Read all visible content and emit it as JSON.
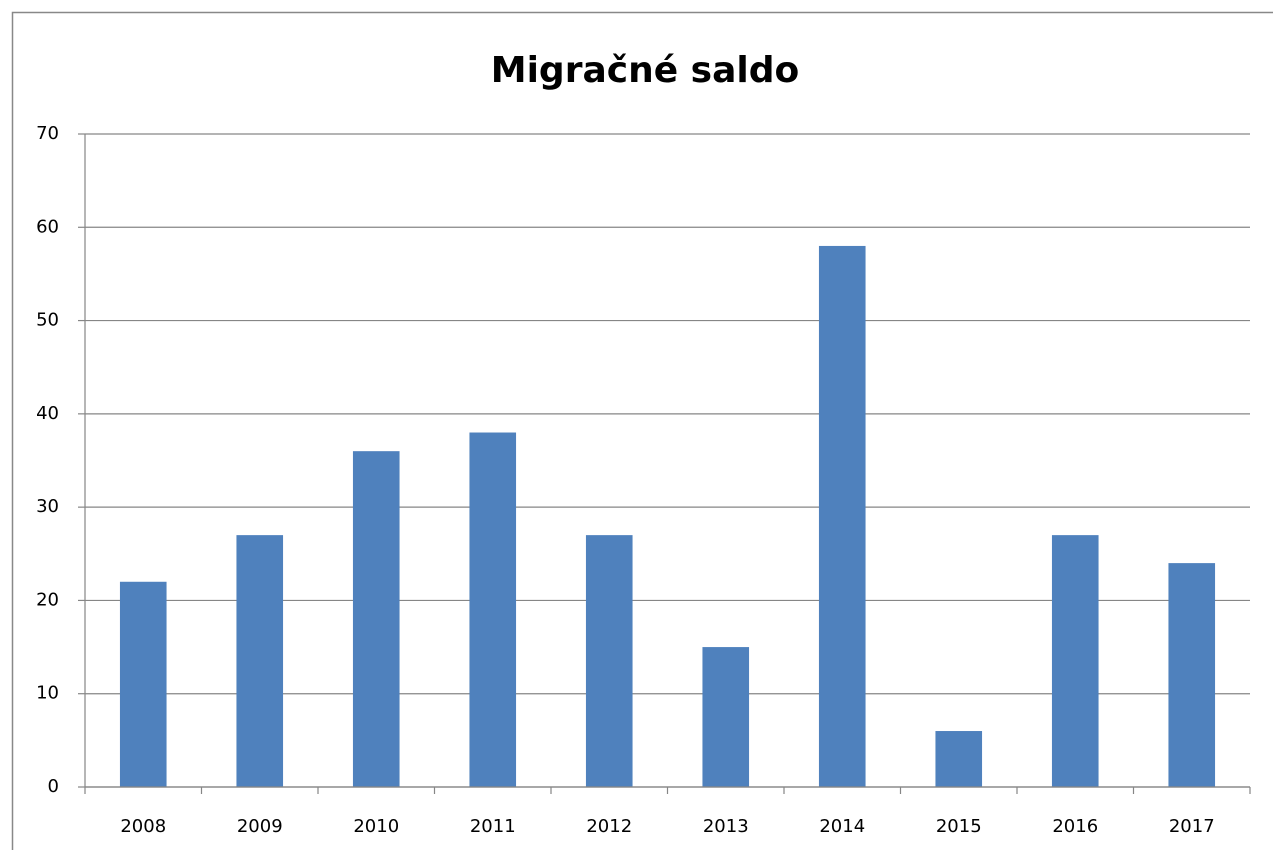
{
  "chart_data": {
    "type": "bar",
    "title": "Migračné saldo",
    "categories": [
      "2008",
      "2009",
      "2010",
      "2011",
      "2012",
      "2013",
      "2014",
      "2015",
      "2016",
      "2017"
    ],
    "values": [
      22,
      27,
      36,
      38,
      27,
      15,
      58,
      6,
      27,
      24
    ],
    "color": "#4f81bd",
    "ylim": [
      0,
      70
    ],
    "yticks": [
      0,
      10,
      20,
      30,
      40,
      50,
      60,
      70
    ],
    "grid": true
  }
}
